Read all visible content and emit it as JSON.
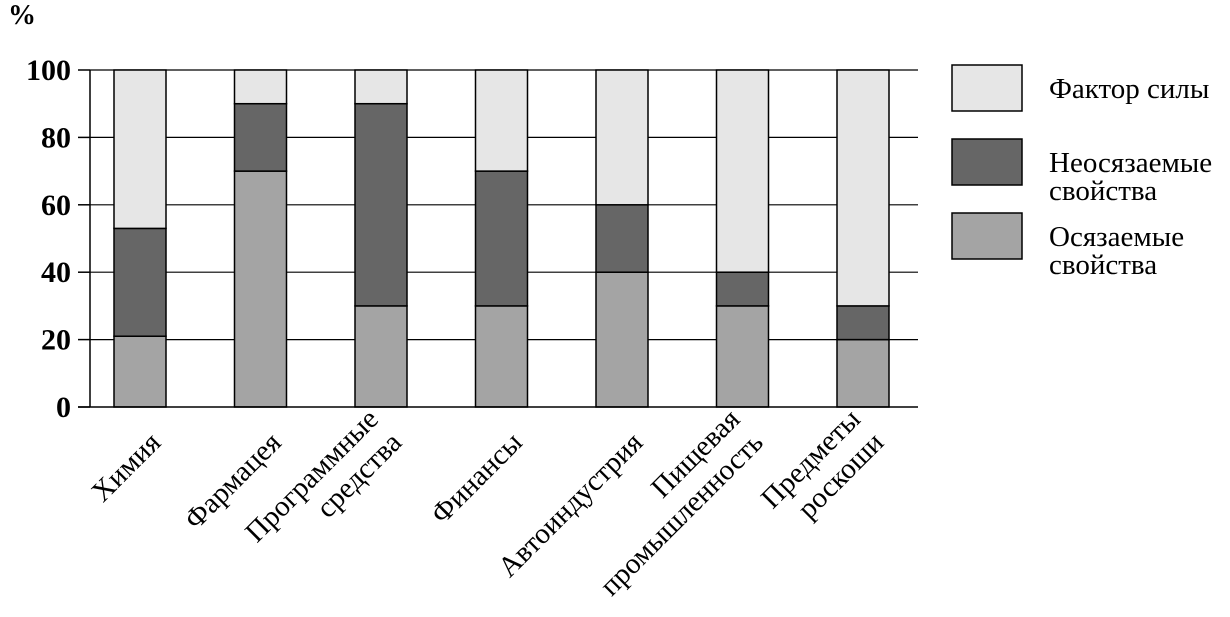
{
  "chart_data": {
    "type": "bar",
    "stacked": true,
    "ylabel": "%",
    "ylim": [
      0,
      100
    ],
    "yticks": [
      0,
      20,
      40,
      60,
      80,
      100
    ],
    "grid": true,
    "legend_position": "right",
    "categories": [
      [
        "Химия"
      ],
      [
        "Фармацея"
      ],
      [
        "Программные",
        "средства"
      ],
      [
        "Финансы"
      ],
      [
        "Автоиндустрия"
      ],
      [
        "Пищевая",
        "промышленность"
      ],
      [
        "Предметы",
        "роскоши"
      ]
    ],
    "series": [
      {
        "name": [
          "Осязаемые",
          "свойства"
        ],
        "color": "#a4a4a4",
        "values": [
          21,
          70,
          30,
          30,
          40,
          30,
          20
        ]
      },
      {
        "name": [
          "Неосязаемые",
          "свойства"
        ],
        "color": "#666666",
        "values": [
          32,
          20,
          60,
          40,
          20,
          10,
          10
        ]
      },
      {
        "name": [
          "Фактор силы"
        ],
        "color": "#e6e6e6",
        "values": [
          47,
          10,
          10,
          30,
          40,
          60,
          70
        ]
      }
    ]
  }
}
